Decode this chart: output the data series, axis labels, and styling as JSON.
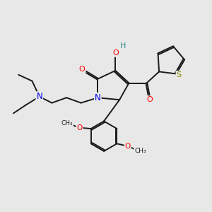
{
  "bg_color": "#e8e8e8",
  "bond_color": "#1a1a1a",
  "bond_width": 1.4,
  "atom_colors": {
    "N": "#0000ee",
    "O": "#ff0000",
    "S": "#8b8b00",
    "H": "#2e8b8b",
    "C": "#1a1a1a"
  },
  "figsize": [
    3.0,
    3.0
  ],
  "dpi": 100
}
